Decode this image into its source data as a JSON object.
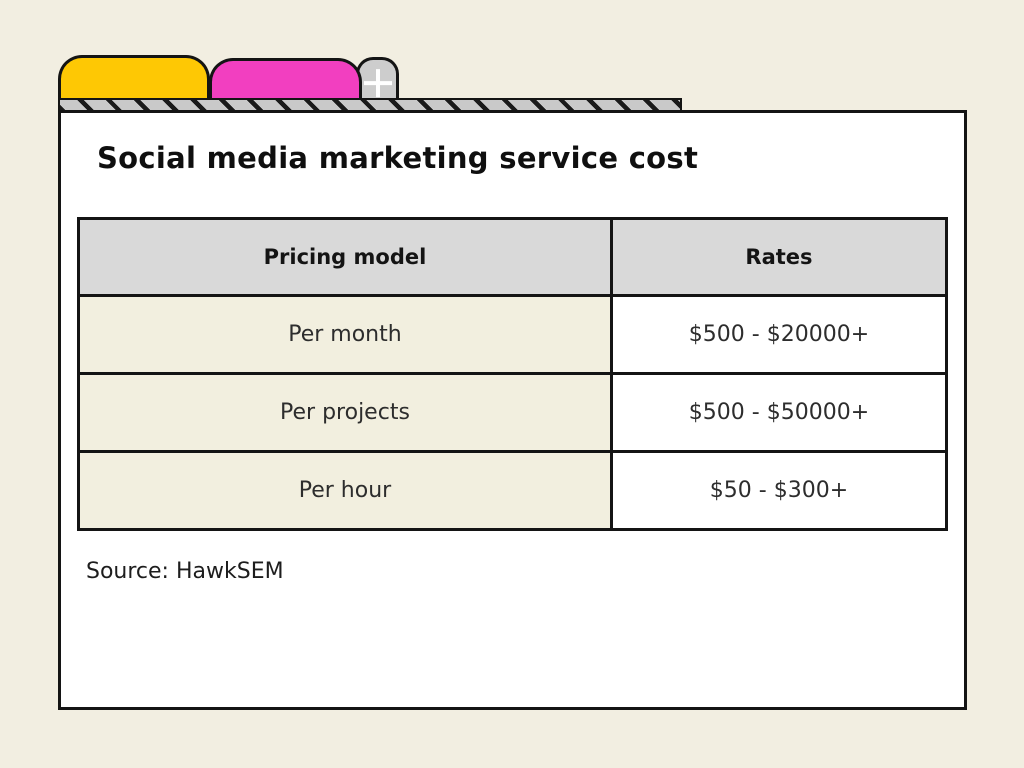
{
  "title": "Social media marketing service cost",
  "window": {
    "tabs": [
      {
        "id": "yellow-tab",
        "color": "#fec804"
      },
      {
        "id": "pink-tab",
        "color": "#f23fc0"
      },
      {
        "id": "new-tab",
        "color": "#cdcdcd",
        "icon": "plus-icon"
      }
    ],
    "hatch_bar": {
      "stripe_color": "#1a1a1a",
      "base_color": "#c9c9c9"
    }
  },
  "table": {
    "headers": [
      "Pricing model",
      "Rates"
    ],
    "rows": [
      {
        "model": "Per month",
        "rate": "$500 - $20000+"
      },
      {
        "model": "Per projects",
        "rate": "$500 - $50000+"
      },
      {
        "model": "Per hour",
        "rate": "$50 - $300+"
      }
    ],
    "colors": {
      "header_bg": "#d9d9d9",
      "model_cell_bg": "#f2efdf",
      "rate_cell_bg": "#ffffff",
      "border": "#141414"
    }
  },
  "source": "Source: HawkSEM",
  "colors": {
    "canvas_bg": "#f2eee1",
    "panel_bg": "#ffffff"
  },
  "chart_data": {
    "type": "table",
    "title": "Social media marketing service cost",
    "columns": [
      "Pricing model",
      "Rates"
    ],
    "rows": [
      [
        "Per month",
        "$500 - $20000+"
      ],
      [
        "Per projects",
        "$500 - $50000+"
      ],
      [
        "Per hour",
        "$50 - $300+"
      ]
    ],
    "source": "HawkSEM"
  }
}
